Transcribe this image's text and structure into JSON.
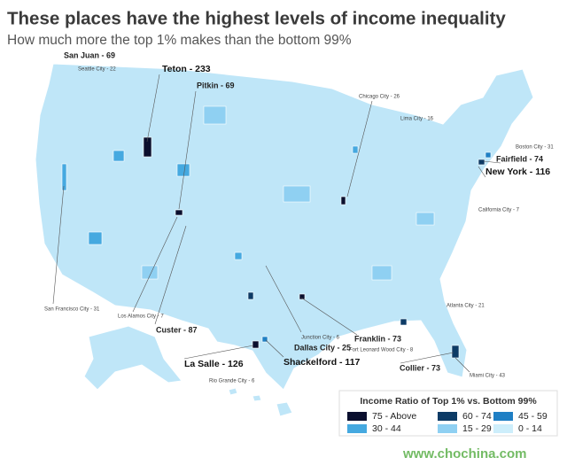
{
  "header": {
    "title": "These places have the highest levels of income inequality",
    "subtitle": "How much more the top 1% makes than the bottom 99%"
  },
  "map_labels": [
    {
      "text": "San Juan - 69",
      "size": "med"
    },
    {
      "text": "Seattle City - 22",
      "size": "small"
    },
    {
      "text": "Teton - 233",
      "size": "big"
    },
    {
      "text": "Pitkin - 69",
      "size": "med"
    },
    {
      "text": "Chicago City - 26",
      "size": "small"
    },
    {
      "text": "Lima City - 16",
      "size": "small"
    },
    {
      "text": "Boston City - 31",
      "size": "small"
    },
    {
      "text": "Fairfield - 74",
      "size": "med"
    },
    {
      "text": "New York - 116",
      "size": "big"
    },
    {
      "text": "California City - 7",
      "size": "small"
    },
    {
      "text": "Atlanta City - 21",
      "size": "small"
    },
    {
      "text": "San Francisco City - 31",
      "size": "small"
    },
    {
      "text": "Los Alamos City - 7",
      "size": "small"
    },
    {
      "text": "Custer - 87",
      "size": "med"
    },
    {
      "text": "Junction City - 6",
      "size": "small"
    },
    {
      "text": "Franklin - 73",
      "size": "med"
    },
    {
      "text": "Fort Leonard Wood City - 8",
      "size": "small"
    },
    {
      "text": "Dallas City - 25",
      "size": "med"
    },
    {
      "text": "La Salle - 126",
      "size": "big"
    },
    {
      "text": "Shackelford - 117",
      "size": "big"
    },
    {
      "text": "Collier - 73",
      "size": "med"
    },
    {
      "text": "Miami City - 43",
      "size": "small"
    },
    {
      "text": "Rio Grande City - 6",
      "size": "small"
    }
  ],
  "legend": {
    "title": "Income Ratio of Top 1% vs. Bottom 99%",
    "items": [
      {
        "label": "75 - Above",
        "color": "#0a0f2e"
      },
      {
        "label": "60 - 74",
        "color": "#0d3b66"
      },
      {
        "label": "45 - 59",
        "color": "#1f7fc4"
      },
      {
        "label": "30 - 44",
        "color": "#45a9e0"
      },
      {
        "label": "15 - 29",
        "color": "#8fd0f2"
      },
      {
        "label": "0 - 14",
        "color": "#cdeefb"
      }
    ]
  },
  "watermark": "www.chochina.com"
}
